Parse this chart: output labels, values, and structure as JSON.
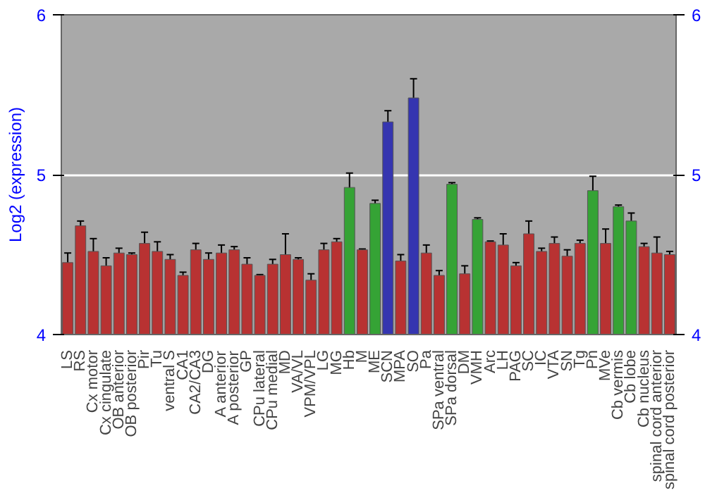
{
  "chart_data": {
    "type": "bar",
    "ylabel": "Log2 (expression)",
    "categories": [
      "LS",
      "RS",
      "Cx motor",
      "Cx cingulate",
      "OB anterior",
      "OB posterior",
      "Pir",
      "Tu",
      "ventral S",
      "CA1",
      "CA2/CA3",
      "DG",
      "A anterior",
      "A posterior",
      "GP",
      "CPu lateral",
      "CPu medial",
      "MD",
      "VA/VL",
      "VPM/VPL",
      "LG",
      "MG",
      "Hb",
      "M",
      "ME",
      "SCN",
      "MPA",
      "SO",
      "Pa",
      "SPa ventral",
      "SPa dorsal",
      "DM",
      "VMH",
      "Arc",
      "LH",
      "PAG",
      "SC",
      "IC",
      "VTA",
      "SN",
      "Tg",
      "Pn",
      "MVe",
      "Cb vermis",
      "Cb lobe",
      "Cb nucleus",
      "spinal cord anterior",
      "spinal cord posterior"
    ],
    "values": [
      4.45,
      4.68,
      4.52,
      4.43,
      4.51,
      4.5,
      4.57,
      4.52,
      4.47,
      4.37,
      4.53,
      4.47,
      4.51,
      4.53,
      4.44,
      4.37,
      4.44,
      4.5,
      4.47,
      4.34,
      4.53,
      4.58,
      4.92,
      4.53,
      4.82,
      5.33,
      4.46,
      5.48,
      4.51,
      4.37,
      4.94,
      4.38,
      4.72,
      4.58,
      4.56,
      4.43,
      4.63,
      4.52,
      4.57,
      4.49,
      4.57,
      4.9,
      4.57,
      4.8,
      4.71,
      4.55,
      4.51,
      4.5
    ],
    "errors": [
      0.06,
      0.03,
      0.08,
      0.05,
      0.03,
      0.01,
      0.07,
      0.06,
      0.03,
      0.02,
      0.04,
      0.04,
      0.05,
      0.02,
      0.04,
      0.005,
      0.03,
      0.13,
      0.01,
      0.04,
      0.04,
      0.02,
      0.09,
      0.005,
      0.02,
      0.07,
      0.04,
      0.12,
      0.05,
      0.03,
      0.01,
      0.05,
      0.01,
      0.005,
      0.07,
      0.02,
      0.08,
      0.02,
      0.04,
      0.04,
      0.02,
      0.09,
      0.09,
      0.01,
      0.05,
      0.02,
      0.1,
      0.02
    ],
    "colors": [
      "#b83232",
      "#b83232",
      "#b83232",
      "#b83232",
      "#b83232",
      "#b83232",
      "#b83232",
      "#b83232",
      "#b83232",
      "#b83232",
      "#b83232",
      "#b83232",
      "#b83232",
      "#b83232",
      "#b83232",
      "#b83232",
      "#b83232",
      "#b83232",
      "#b83232",
      "#b83232",
      "#b83232",
      "#b83232",
      "#35a335",
      "#b83232",
      "#35a335",
      "#3535b0",
      "#b83232",
      "#3535b0",
      "#b83232",
      "#b83232",
      "#35a335",
      "#b83232",
      "#35a335",
      "#b83232",
      "#b83232",
      "#b83232",
      "#b83232",
      "#b83232",
      "#b83232",
      "#b83232",
      "#b83232",
      "#35a335",
      "#b83232",
      "#35a335",
      "#35a335",
      "#b83232",
      "#b83232",
      "#b83232"
    ],
    "ylim": [
      4,
      6
    ],
    "yticks": [
      4,
      5,
      6
    ],
    "y2lim": [
      4,
      6
    ],
    "y2ticks": [
      4,
      5,
      6
    ],
    "grid": "y"
  }
}
